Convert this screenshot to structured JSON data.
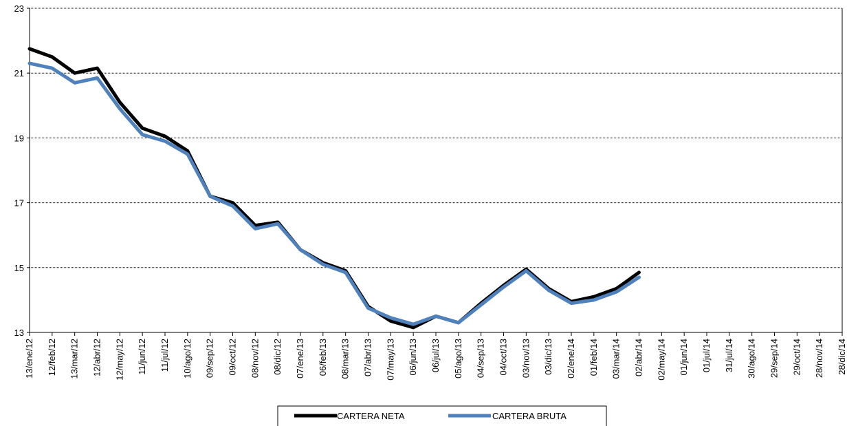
{
  "chart_data": {
    "type": "line",
    "title": "",
    "xlabel": "",
    "ylabel": "",
    "ylim": [
      13,
      23
    ],
    "yticks": [
      "13",
      "15",
      "17",
      "19",
      "21",
      "23"
    ],
    "grid": "horizontal",
    "legend_position": "bottom",
    "x_tick_labels": [
      "13/ene/12",
      "12/feb/12",
      "13/mar/12",
      "12/abr/12",
      "12/may/12",
      "11/jun/12",
      "11/jul/12",
      "10/ago/12",
      "09/sep/12",
      "09/oct/12",
      "08/nov/12",
      "08/dic/12",
      "07/ene/13",
      "06/feb/13",
      "08/mar/13",
      "07/abr/13",
      "07/may/13",
      "06/jun/13",
      "06/jul/13",
      "05/ago/13",
      "04/sep/13",
      "04/oct/13",
      "03/nov/13",
      "03/dic/13",
      "02/ene/14",
      "01/feb/14",
      "03/mar/14",
      "02/abr/14",
      "02/may/14",
      "01/jun/14",
      "01/jul/14",
      "31/jul/14",
      "30/ago/14",
      "29/sep/14",
      "29/oct/14",
      "28/nov/14",
      "28/dic/14"
    ],
    "x": [
      "13/ene/12",
      "12/feb/12",
      "13/mar/12",
      "12/abr/12",
      "12/may/12",
      "11/jun/12",
      "11/jul/12",
      "10/ago/12",
      "09/sep/12",
      "09/oct/12",
      "08/nov/12",
      "08/dic/12",
      "07/ene/13",
      "06/feb/13",
      "08/mar/13",
      "07/abr/13",
      "07/may/13",
      "06/jun/13",
      "06/jul/13",
      "05/ago/13",
      "04/sep/13",
      "04/oct/13",
      "03/nov/13",
      "03/dic/13",
      "02/ene/14",
      "01/feb/14",
      "03/mar/14",
      "02/abr/14"
    ],
    "series": [
      {
        "name": "CARTERA NETA",
        "color": "#000000",
        "values": [
          21.75,
          21.5,
          21.0,
          21.15,
          20.1,
          19.3,
          19.05,
          18.6,
          17.2,
          17.0,
          16.3,
          16.4,
          15.55,
          15.15,
          14.9,
          13.8,
          13.35,
          13.15,
          13.5,
          13.3,
          13.9,
          14.45,
          14.95,
          14.35,
          13.95,
          14.1,
          14.35,
          14.85
        ]
      },
      {
        "name": "CARTERA BRUTA",
        "color": "#4f81bd",
        "values": [
          21.3,
          21.15,
          20.7,
          20.85,
          19.9,
          19.1,
          18.9,
          18.5,
          17.2,
          16.9,
          16.2,
          16.35,
          15.55,
          15.1,
          14.85,
          13.75,
          13.45,
          13.25,
          13.5,
          13.3,
          13.85,
          14.4,
          14.9,
          14.3,
          13.9,
          14.0,
          14.25,
          14.7
        ]
      }
    ]
  }
}
